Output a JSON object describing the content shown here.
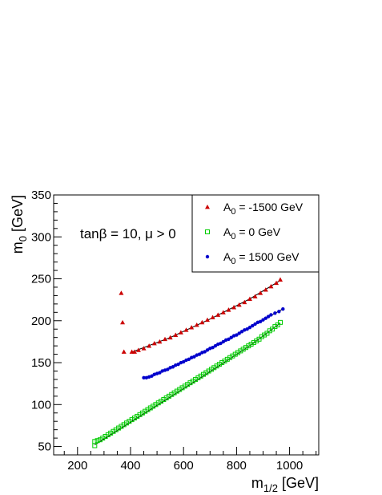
{
  "chart_data": {
    "type": "scatter",
    "title": "",
    "annotation": "tanβ = 10, μ > 0",
    "xlabel": {
      "main": "m",
      "sub": "1/2",
      "unit": " [GeV]"
    },
    "ylabel": {
      "main": "m",
      "sub": "0",
      "unit": " [GeV]"
    },
    "xlim": [
      110,
      1110
    ],
    "ylim": [
      40,
      350
    ],
    "xticks": [
      200,
      400,
      600,
      800,
      1000
    ],
    "yticks": [
      50,
      100,
      150,
      200,
      250,
      300,
      350
    ],
    "legend_position": "top-right",
    "series": [
      {
        "name": "A₀ = -1500 GeV",
        "legend": {
          "main": "A",
          "sub": "0",
          "rest": " = -1500 GeV"
        },
        "marker": "triangle",
        "color": "#cc0000",
        "points": [
          [
            365,
            233
          ],
          [
            370,
            198
          ],
          [
            375,
            163
          ],
          [
            405,
            163
          ],
          [
            415,
            163
          ],
          [
            430,
            165
          ],
          [
            450,
            167
          ],
          [
            470,
            170
          ],
          [
            490,
            173
          ],
          [
            510,
            175
          ],
          [
            530,
            178
          ],
          [
            550,
            180
          ],
          [
            570,
            183
          ],
          [
            590,
            186
          ],
          [
            610,
            189
          ],
          [
            630,
            192
          ],
          [
            650,
            195
          ],
          [
            670,
            198
          ],
          [
            690,
            201
          ],
          [
            710,
            204
          ],
          [
            730,
            207
          ],
          [
            750,
            210
          ],
          [
            770,
            213
          ],
          [
            790,
            216
          ],
          [
            810,
            219
          ],
          [
            830,
            222
          ],
          [
            850,
            226
          ],
          [
            870,
            229
          ],
          [
            890,
            233
          ],
          [
            910,
            237
          ],
          [
            930,
            241
          ],
          [
            950,
            245
          ],
          [
            965,
            249
          ]
        ],
        "fit": [
          [
            400,
            162
          ],
          [
            550,
            180
          ],
          [
            700,
            202
          ],
          [
            850,
            226
          ],
          [
            965,
            248
          ]
        ]
      },
      {
        "name": "A₀ = 0 GeV",
        "legend": {
          "main": "A",
          "sub": "0",
          "rest": " = 0 GeV"
        },
        "marker": "open-square",
        "color": "#00cc00",
        "points": [
          [
            265,
            51
          ],
          [
            265,
            56
          ],
          [
            275,
            57
          ],
          [
            285,
            58
          ],
          [
            295,
            60
          ],
          [
            305,
            62
          ],
          [
            315,
            64
          ],
          [
            325,
            66
          ],
          [
            335,
            68
          ],
          [
            345,
            70
          ],
          [
            355,
            72
          ],
          [
            365,
            74
          ],
          [
            375,
            76
          ],
          [
            385,
            78
          ],
          [
            395,
            80
          ],
          [
            405,
            82
          ],
          [
            415,
            84
          ],
          [
            425,
            86
          ],
          [
            435,
            88
          ],
          [
            445,
            90
          ],
          [
            455,
            92
          ],
          [
            465,
            94
          ],
          [
            475,
            96
          ],
          [
            485,
            98
          ],
          [
            495,
            100
          ],
          [
            505,
            102
          ],
          [
            515,
            104
          ],
          [
            525,
            106
          ],
          [
            535,
            108
          ],
          [
            545,
            110
          ],
          [
            555,
            112
          ],
          [
            565,
            114
          ],
          [
            575,
            116
          ],
          [
            585,
            118
          ],
          [
            595,
            120
          ],
          [
            605,
            122
          ],
          [
            615,
            124
          ],
          [
            625,
            126
          ],
          [
            635,
            128
          ],
          [
            645,
            130
          ],
          [
            655,
            132
          ],
          [
            665,
            134
          ],
          [
            675,
            136
          ],
          [
            685,
            138
          ],
          [
            695,
            140
          ],
          [
            705,
            142
          ],
          [
            715,
            144
          ],
          [
            725,
            146
          ],
          [
            735,
            148
          ],
          [
            745,
            150
          ],
          [
            755,
            152
          ],
          [
            765,
            154
          ],
          [
            775,
            156
          ],
          [
            785,
            158
          ],
          [
            795,
            160
          ],
          [
            805,
            162
          ],
          [
            815,
            164
          ],
          [
            825,
            166
          ],
          [
            835,
            168
          ],
          [
            845,
            170
          ],
          [
            855,
            172
          ],
          [
            865,
            174
          ],
          [
            875,
            176
          ],
          [
            885,
            178
          ],
          [
            895,
            181
          ],
          [
            905,
            183
          ],
          [
            915,
            185
          ],
          [
            925,
            188
          ],
          [
            935,
            190
          ],
          [
            945,
            193
          ],
          [
            955,
            195
          ],
          [
            965,
            198
          ]
        ],
        "fit": [
          [
            265,
            52
          ],
          [
            450,
            89
          ],
          [
            650,
            129
          ],
          [
            850,
            170
          ],
          [
            965,
            197
          ]
        ]
      },
      {
        "name": "A₀ = 1500 GeV",
        "legend": {
          "main": "A",
          "sub": "0",
          "rest": " = 1500 GeV"
        },
        "marker": "circle",
        "color": "#0000cc",
        "points": [
          [
            450,
            132
          ],
          [
            460,
            132
          ],
          [
            470,
            133
          ],
          [
            480,
            134
          ],
          [
            490,
            136
          ],
          [
            500,
            137
          ],
          [
            510,
            138
          ],
          [
            520,
            140
          ],
          [
            530,
            141
          ],
          [
            540,
            142
          ],
          [
            550,
            144
          ],
          [
            560,
            145
          ],
          [
            570,
            147
          ],
          [
            580,
            148
          ],
          [
            590,
            150
          ],
          [
            600,
            151
          ],
          [
            610,
            153
          ],
          [
            620,
            154
          ],
          [
            630,
            156
          ],
          [
            640,
            157
          ],
          [
            650,
            159
          ],
          [
            660,
            160
          ],
          [
            670,
            162
          ],
          [
            680,
            163
          ],
          [
            690,
            165
          ],
          [
            700,
            167
          ],
          [
            710,
            168
          ],
          [
            720,
            170
          ],
          [
            730,
            172
          ],
          [
            740,
            173
          ],
          [
            750,
            175
          ],
          [
            760,
            177
          ],
          [
            770,
            178
          ],
          [
            780,
            180
          ],
          [
            790,
            182
          ],
          [
            800,
            183
          ],
          [
            810,
            185
          ],
          [
            820,
            187
          ],
          [
            830,
            189
          ],
          [
            840,
            190
          ],
          [
            850,
            192
          ],
          [
            860,
            194
          ],
          [
            870,
            196
          ],
          [
            880,
            198
          ],
          [
            890,
            199
          ],
          [
            900,
            201
          ],
          [
            910,
            203
          ],
          [
            920,
            205
          ],
          [
            930,
            207
          ],
          [
            945,
            209
          ],
          [
            960,
            211
          ],
          [
            975,
            214
          ]
        ],
        "fit": [
          [
            450,
            131
          ],
          [
            600,
            151
          ],
          [
            750,
            174
          ],
          [
            900,
            201
          ],
          [
            975,
            214
          ]
        ]
      }
    ]
  }
}
